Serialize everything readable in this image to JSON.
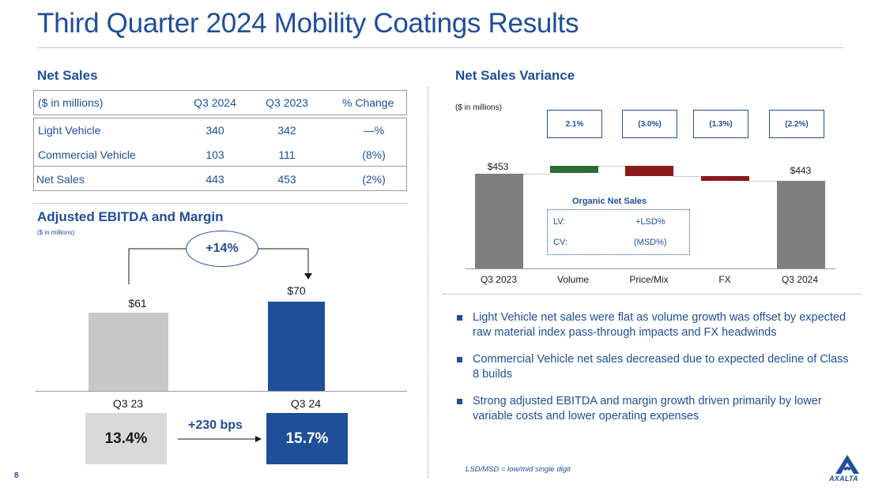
{
  "title": "Third Quarter 2024 Mobility Coatings Results",
  "page_number": "8",
  "net_sales": {
    "heading": "Net Sales",
    "columns": [
      "($ in millions)",
      "Q3 2024",
      "Q3 2023",
      "% Change"
    ],
    "rows": [
      {
        "label": "Light Vehicle",
        "q3_2024": "340",
        "q3_2023": "342",
        "change": "—%"
      },
      {
        "label": "Commercial Vehicle",
        "q3_2024": "103",
        "q3_2023": "111",
        "change": "(8%)"
      },
      {
        "label": "Net Sales",
        "q3_2024": "443",
        "q3_2023": "453",
        "change": "(2%)"
      }
    ]
  },
  "ebitda": {
    "heading": "Adjusted EBITDA and Margin",
    "units": "($ in millions)",
    "growth": "+14%",
    "bps_change": "+230 bps",
    "bars": [
      {
        "category": "Q3 23",
        "value_label": "$61",
        "value": 61,
        "margin": "13.4%",
        "color": "#c8c8c8",
        "margin_bg": "#d9d9d9",
        "margin_fg": "#1a1a1a"
      },
      {
        "category": "Q3 24",
        "value_label": "$70",
        "value": 70,
        "margin": "15.7%",
        "color": "#1f4e9a",
        "margin_bg": "#1f4e9a",
        "margin_fg": "#ffffff"
      }
    ]
  },
  "variance": {
    "heading": "Net Sales Variance",
    "units": "($ in millions)",
    "percent_boxes": [
      "2.1%",
      "(3.0%)",
      "(1.3%)",
      "(2.2%)"
    ],
    "organic": {
      "title": "Organic Net Sales",
      "rows": [
        {
          "label": "LV:",
          "value": "+LSD%"
        },
        {
          "label": "CV:",
          "value": "(MSD%)"
        }
      ]
    }
  },
  "chart_data": {
    "type": "bar",
    "subtype": "waterfall",
    "title": "Net Sales Variance",
    "ylabel": "($ in millions)",
    "categories": [
      "Q3 2023",
      "Volume",
      "Price/Mix",
      "FX",
      "Q3 2024"
    ],
    "values": [
      453,
      9.5,
      -13.6,
      -5.9,
      443
    ],
    "value_labels": [
      "$453",
      "",
      "",
      "",
      "$443"
    ],
    "percent_labels": [
      "",
      "2.1%",
      "(3.0%)",
      "(1.3%)",
      "(2.2%)"
    ],
    "colors": [
      "#7f7f7f",
      "#2e6b34",
      "#8b1a1a",
      "#8b1a1a",
      "#7f7f7f"
    ]
  },
  "bullets": [
    "Light Vehicle net sales were flat as volume growth was offset by expected raw material index pass-through impacts and FX headwinds",
    "Commercial Vehicle net sales decreased due to expected decline of Class 8 builds",
    "Strong adjusted EBITDA and margin growth driven primarily by lower variable costs and lower operating expenses"
  ],
  "footnote": "LSD/MSD = low/mid single digit",
  "logo_text": "AXALTA",
  "brand_color": "#1f4e9a"
}
